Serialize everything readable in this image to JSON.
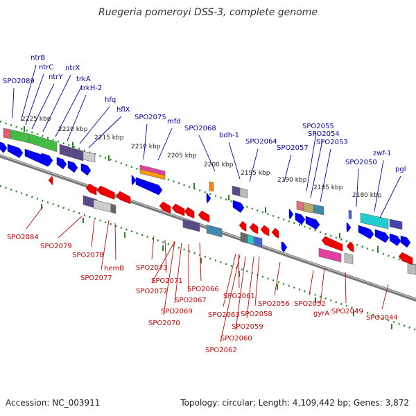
{
  "title": "Ruegeria pomeroyi DSS-3, complete genome",
  "footer": {
    "accession": "Accession: NC_003911",
    "summary": "Topology: circular; Length: 4,109,442 bp; Genes: 3,872"
  },
  "colors": {
    "forward_label": "#0000aa",
    "reverse_label": "#cc0000",
    "forward_arrow": "#0000ee",
    "reverse_arrow": "#ee0000",
    "scale": "#228822",
    "backbone": "#777777"
  },
  "ruler_labels": [
    "2225 kbp",
    "2220 kbp",
    "2215 kbp",
    "2210 kbp",
    "2205 kbp",
    "2200 kbp",
    "2195 kbp",
    "2190 kbp",
    "2185 kbp",
    "2180 kbp"
  ],
  "forward_genes": [
    "SPO2089",
    "ntrB",
    "ntrC",
    "ntrY",
    "ntrX",
    "trkA",
    "trkH-2",
    "hfq",
    "hflX",
    "SPO2075",
    "mfd",
    "SPO2068",
    "bdh-1",
    "SPO2064",
    "SPO2057",
    "SPO2055",
    "SPO2054",
    "SPO2053",
    "SPO2050",
    "zwf-1",
    "pgl"
  ],
  "reverse_genes": [
    "SPO2084",
    "SPO2079",
    "SPO2078",
    "hemB",
    "SPO2077",
    "SPO2073",
    "SPO2071",
    "SPO2072",
    "SPO2066",
    "SPO2067",
    "SPO2069",
    "SPO2070",
    "SPO2061",
    "SPO2056",
    "SPO2063",
    "SPO2058",
    "SPO2059",
    "SPO2060",
    "SPO2062",
    "SPO2052",
    "gyrA",
    "SPO2049",
    "SPO2044"
  ]
}
